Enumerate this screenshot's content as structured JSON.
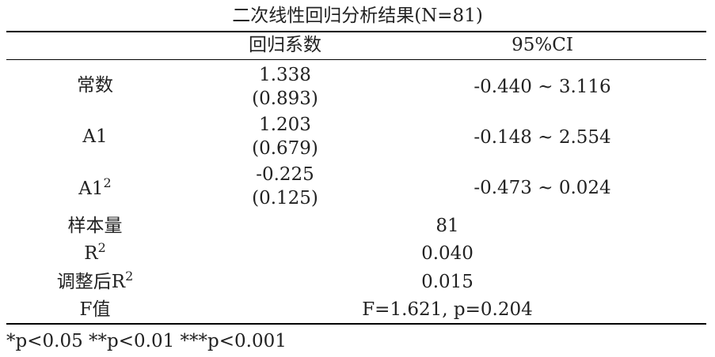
{
  "title": "二次线性回归分析结果(N=81)",
  "header": {
    "coef": "回归系数",
    "ci": "95%CI"
  },
  "rows": [
    {
      "label": "常数",
      "coef": "1.338",
      "se": "(0.893)",
      "ci": "-0.440 ~ 3.116"
    },
    {
      "label": "A1",
      "coef": "1.203",
      "se": "(0.679)",
      "ci": "-0.148 ~ 2.554"
    },
    {
      "label": "A1",
      "label_sup": "2",
      "coef": "-0.225",
      "se": "(0.125)",
      "ci": "-0.473 ~ 0.024"
    }
  ],
  "stats": [
    {
      "label": "样本量",
      "value": "81"
    },
    {
      "label": "R",
      "label_sup": "2",
      "value": "0.040"
    },
    {
      "label": "调整后R",
      "label_sup": "2",
      "value": "0.015"
    },
    {
      "label": "F值",
      "value": "F=1.621, p=0.204"
    }
  ],
  "footnote": "*p<0.05 **p<0.01 ***p<0.001"
}
